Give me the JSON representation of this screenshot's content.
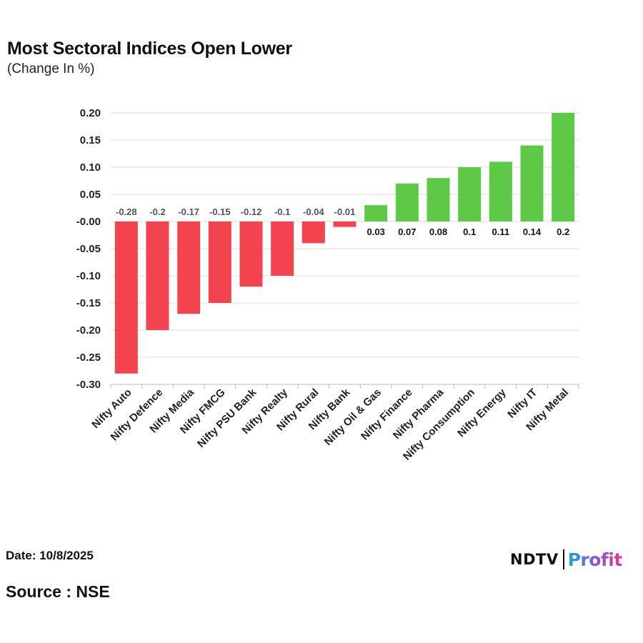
{
  "header": {
    "title": "Most Sectoral Indices Open Lower",
    "subtitle": "(Change In %)"
  },
  "footer": {
    "date": "Date: 10/8/2025",
    "source": "Source : NSE",
    "logo_brand": "NDTV",
    "logo_product": "Profit"
  },
  "colors": {
    "negative": "#f2434f",
    "positive": "#5ec947",
    "grid": "#dcdcdc",
    "axis_text": "#222222"
  },
  "chart_data": {
    "type": "bar",
    "title": "Most Sectoral Indices Open Lower",
    "subtitle": "(Change In %)",
    "xlabel": "",
    "ylabel": "",
    "ylim": [
      -0.3,
      0.2
    ],
    "yticks": [
      0.2,
      0.15,
      0.1,
      0.05,
      -0.0,
      -0.05,
      -0.1,
      -0.15,
      -0.2,
      -0.25,
      -0.3
    ],
    "ytick_labels": [
      "0.20",
      "0.15",
      "0.10",
      "0.05",
      "-0.00",
      "-0.05",
      "-0.10",
      "-0.15",
      "-0.20",
      "-0.25",
      "-0.30"
    ],
    "grid": true,
    "categories": [
      "Nifty Auto",
      "Nifty Defence",
      "Nifty Media",
      "Nifty FMCG",
      "Nifty PSU Bank",
      "Nifty Realty",
      "Nifty Rural",
      "Nifty Bank",
      "Nifty Oil & Gas",
      "Nifty Finance",
      "Nifty Pharma",
      "Nifty Consumption",
      "Nifty Energy",
      "Nifty IT",
      "Nifty Metal"
    ],
    "values": [
      -0.28,
      -0.2,
      -0.17,
      -0.15,
      -0.12,
      -0.1,
      -0.04,
      -0.01,
      0.03,
      0.07,
      0.08,
      0.1,
      0.11,
      0.14,
      0.2
    ],
    "data_labels": [
      "-0.28",
      "-0.2",
      "-0.17",
      "-0.15",
      "-0.12",
      "-0.1",
      "-0.04",
      "-0.01",
      "0.03",
      "0.07",
      "0.08",
      "0.1",
      "0.11",
      "0.14",
      "0.2"
    ]
  }
}
